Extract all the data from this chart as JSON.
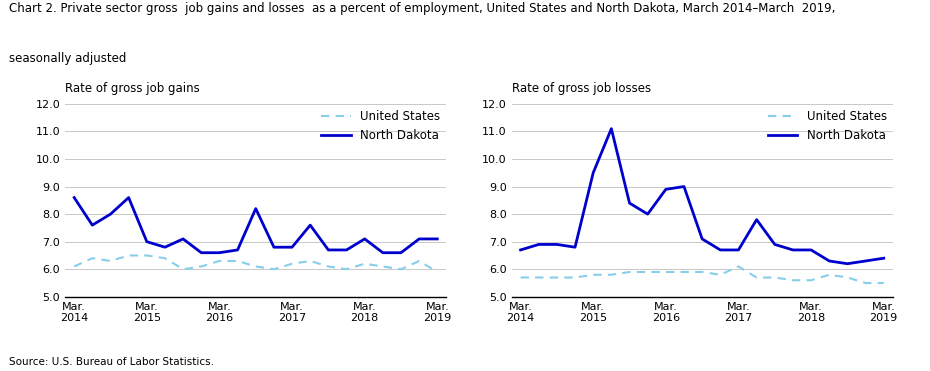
{
  "title_line1": "Chart 2. Private sector gross  job gains and losses  as a percent of employment, United States and North Dakota, March 2014–March  2019,",
  "title_line2": "seasonally adjusted",
  "source": "Source: U.S. Bureau of Labor Statistics.",
  "left_ylabel": "Rate of gross job gains",
  "right_ylabel": "Rate of gross job losses",
  "x_labels": [
    "Mar.\n2014",
    "Mar.\n2015",
    "Mar.\n2016",
    "Mar.\n2017",
    "Mar.\n2018",
    "Mar.\n2019"
  ],
  "x_positions": [
    0,
    4,
    8,
    12,
    16,
    20
  ],
  "ylim": [
    5.0,
    12.0
  ],
  "yticks": [
    5.0,
    6.0,
    7.0,
    8.0,
    9.0,
    10.0,
    11.0,
    12.0
  ],
  "gains_us": [
    6.1,
    6.4,
    6.3,
    6.5,
    6.5,
    6.4,
    6.0,
    6.1,
    6.3,
    6.3,
    6.1,
    6.0,
    6.2,
    6.3,
    6.1,
    6.0,
    6.2,
    6.1,
    6.0,
    6.3,
    5.9
  ],
  "gains_nd": [
    8.6,
    7.6,
    8.0,
    8.6,
    7.0,
    6.8,
    7.1,
    6.6,
    6.6,
    6.7,
    8.2,
    6.8,
    6.8,
    7.6,
    6.7,
    6.7,
    7.1,
    6.6,
    6.6,
    7.1,
    7.1
  ],
  "losses_us": [
    5.7,
    5.7,
    5.7,
    5.7,
    5.8,
    5.8,
    5.9,
    5.9,
    5.9,
    5.9,
    5.9,
    5.8,
    6.1,
    5.7,
    5.7,
    5.6,
    5.6,
    5.8,
    5.7,
    5.5,
    5.5
  ],
  "losses_nd": [
    6.7,
    6.9,
    6.9,
    6.8,
    9.5,
    11.1,
    8.4,
    8.0,
    8.9,
    9.0,
    7.1,
    6.7,
    6.7,
    7.8,
    6.9,
    6.7,
    6.7,
    6.3,
    6.2,
    6.3,
    6.4
  ],
  "us_color": "#87CEEB",
  "nd_color": "#0000CD",
  "linewidth_us": 1.5,
  "linewidth_nd": 2.0,
  "legend_us": "United States",
  "legend_nd": "North Dakota",
  "background_color": "#ffffff",
  "grid_color": "#c8c8c8",
  "title_fontsize": 8.5,
  "axis_label_fontsize": 8.5,
  "tick_fontsize": 8,
  "legend_fontsize": 8.5,
  "source_fontsize": 7.5
}
